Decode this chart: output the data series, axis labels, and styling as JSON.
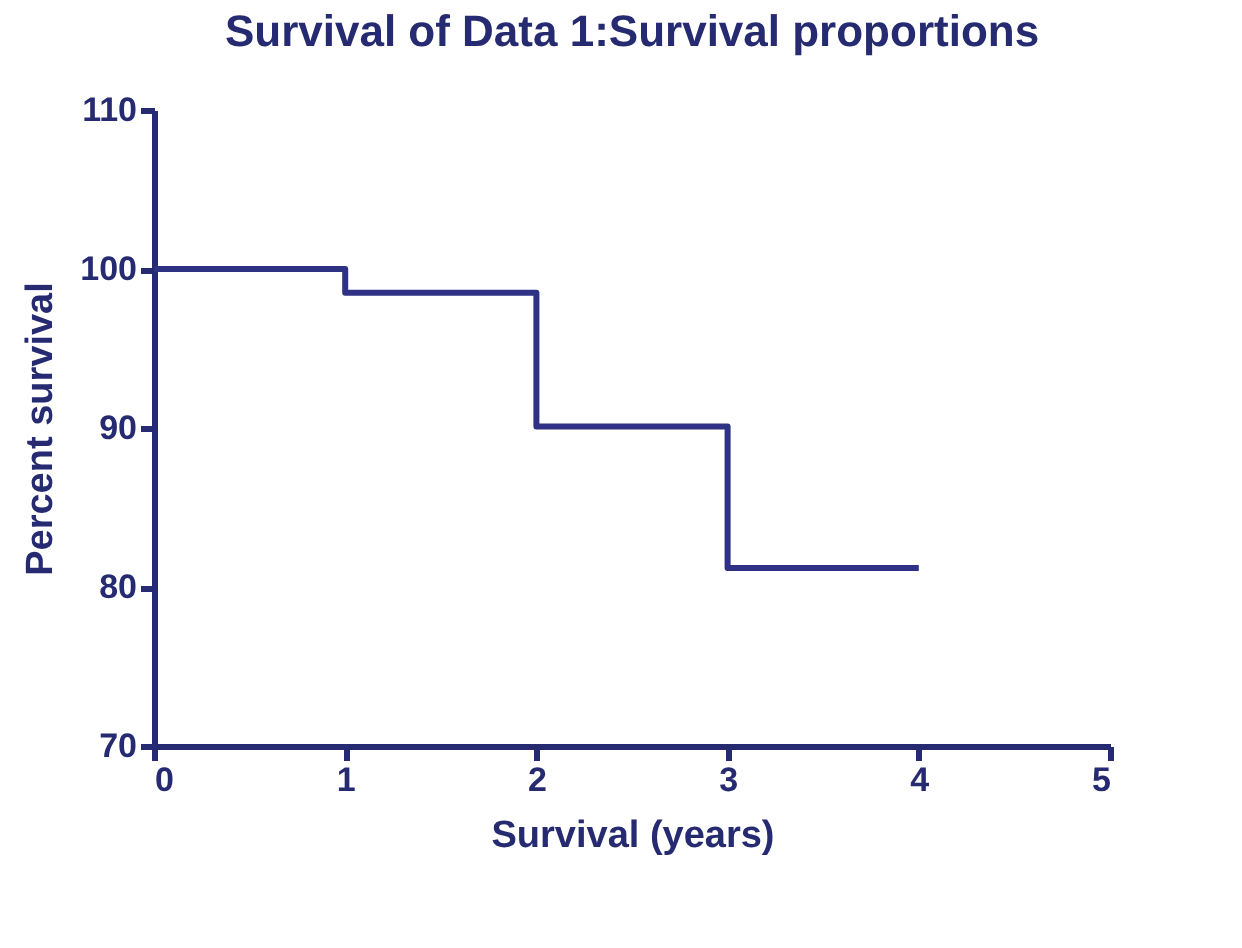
{
  "chart_data": {
    "type": "step",
    "title": "Survival of Data 1:Survival proportions",
    "xlabel": "Survival (years)",
    "ylabel": "Percent survival",
    "x": [
      0,
      1,
      2,
      3,
      4
    ],
    "series": [
      {
        "color": "#2e3184",
        "values": [
          100,
          98.5,
          90.1,
          81.2,
          81.2
        ]
      }
    ],
    "xlim": [
      0,
      5
    ],
    "xticks": [
      0,
      1,
      2,
      3,
      4,
      5
    ],
    "ylim": [
      70,
      110
    ],
    "yticks": [
      70,
      80,
      90,
      100,
      110
    ],
    "grid": false,
    "legend": false,
    "marker": "none",
    "line_style": "solid"
  }
}
